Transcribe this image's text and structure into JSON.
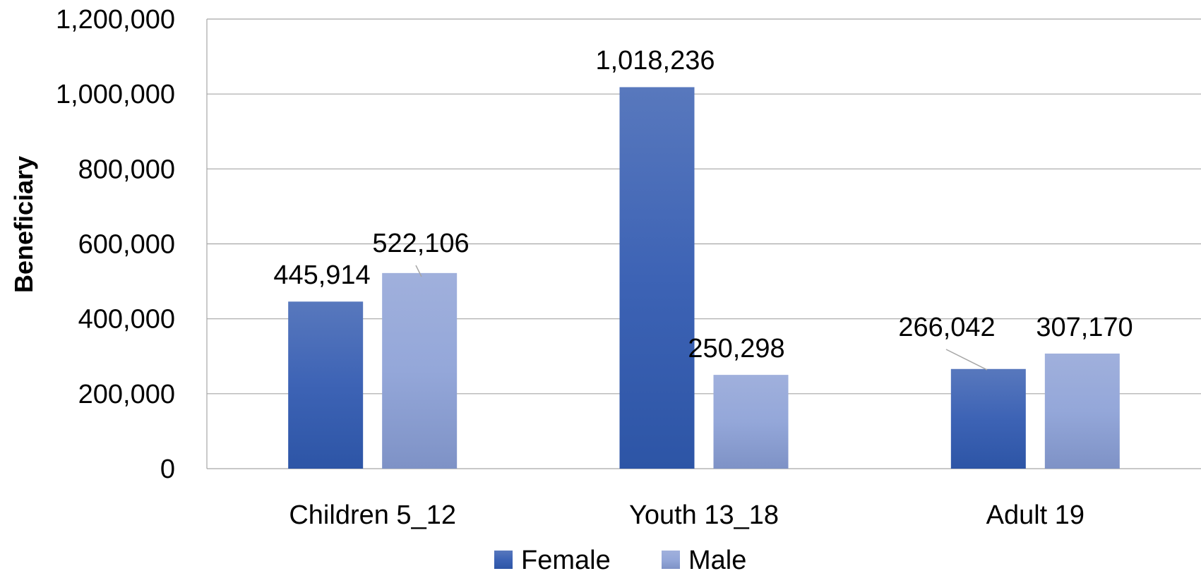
{
  "chart_data": {
    "type": "bar",
    "categories": [
      "Children 5_12",
      "Youth 13_18",
      "Adult 19"
    ],
    "series": [
      {
        "name": "Female",
        "values": [
          445914,
          1018236,
          266042
        ],
        "labels": [
          "445,914",
          "1,018,236",
          "266,042"
        ]
      },
      {
        "name": "Male",
        "values": [
          522106,
          250298,
          307170
        ],
        "labels": [
          "522,106",
          "250,298",
          "307,170"
        ]
      }
    ],
    "ylabel": "Beneficiary",
    "xlabel": "",
    "ylim": [
      0,
      1200000
    ],
    "yticks": [
      0,
      200000,
      400000,
      600000,
      800000,
      1000000,
      1200000
    ],
    "ytick_labels": [
      "0",
      "200,000",
      "400,000",
      "600,000",
      "800,000",
      "1,000,000",
      "1,200,000"
    ],
    "grid": true,
    "legend_position": "bottom",
    "colors": {
      "Female": "#3a5fb0",
      "Male": "#8fa3d6",
      "gridline": "#a6a6a6"
    }
  }
}
